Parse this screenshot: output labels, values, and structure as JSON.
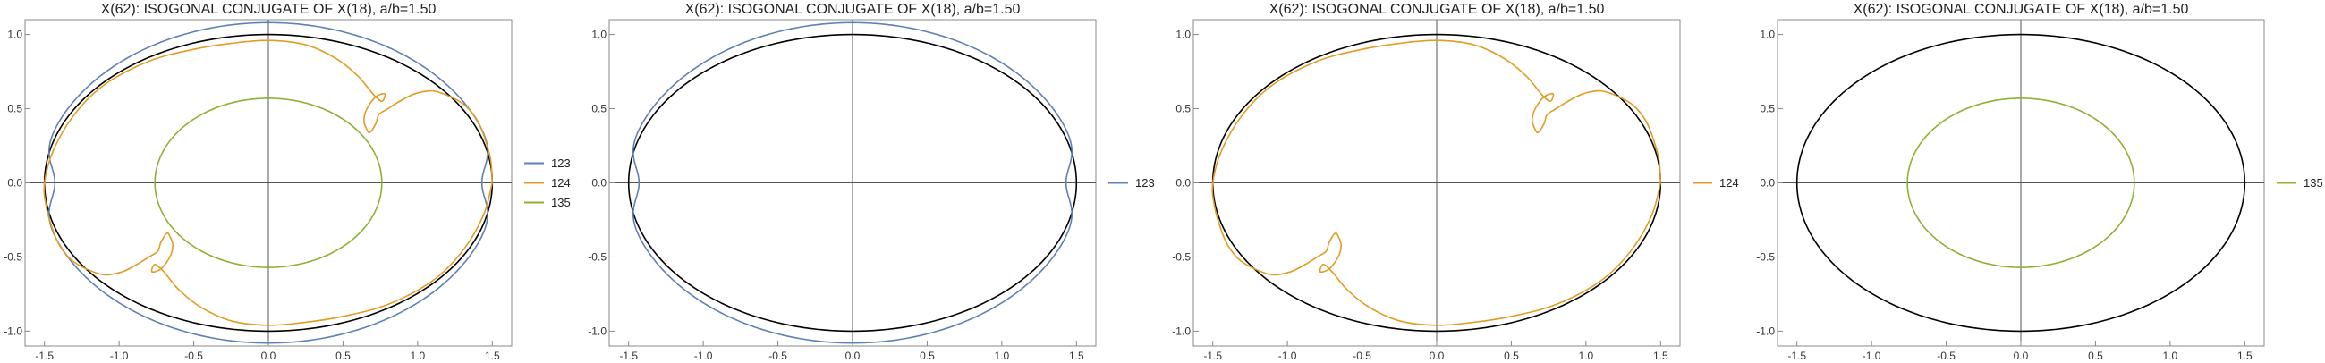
{
  "figure": {
    "colors": {
      "black": "#000000",
      "123": "#5e81b5",
      "124": "#e19c24",
      "135": "#8fb032",
      "frame": "#888888",
      "axis": "#555555"
    }
  },
  "chart_data": [
    {
      "type": "line",
      "title": "X(62): ISOGONAL CONJUGATE OF X(18), a/b=1.50",
      "xlim": [
        -1.63,
        1.63
      ],
      "ylim": [
        -1.1,
        1.1
      ],
      "xticks": [
        -1.5,
        -1.0,
        -0.5,
        0.0,
        0.5,
        1.0,
        1.5
      ],
      "xtick_labels": [
        "-1.5",
        "-1.0",
        "-0.5",
        "0.0",
        "0.5",
        "1.0",
        "1.5"
      ],
      "yticks": [
        -1.0,
        -0.5,
        0.0,
        0.5,
        1.0
      ],
      "ytick_labels": [
        "-1.0",
        "-0.5",
        "0.0",
        "0.5",
        "1.0"
      ],
      "legend": [
        "123",
        "124",
        "135"
      ],
      "legend_position": "right",
      "grid": false,
      "series": [
        {
          "key": "ellipse",
          "color": "black",
          "shape": "ellipse",
          "a": 1.5,
          "b": 1.0
        },
        {
          "key": "123",
          "name": "123",
          "color": "123",
          "shape": "outer_curve"
        },
        {
          "key": "124",
          "name": "124",
          "color": "124",
          "shape": "loop_curve",
          "points": [
            [
              1.5,
              0.0
            ],
            [
              1.49,
              0.15
            ],
            [
              1.45,
              0.3
            ],
            [
              1.4,
              0.42
            ],
            [
              1.32,
              0.52
            ],
            [
              1.22,
              0.58
            ],
            [
              1.1,
              0.62
            ],
            [
              0.98,
              0.6
            ],
            [
              0.88,
              0.55
            ],
            [
              0.8,
              0.5
            ],
            [
              0.74,
              0.46
            ],
            [
              0.72,
              0.4
            ],
            [
              0.68,
              0.34
            ],
            [
              0.66,
              0.36
            ],
            [
              0.64,
              0.42
            ],
            [
              0.66,
              0.5
            ],
            [
              0.72,
              0.58
            ],
            [
              0.78,
              0.6
            ],
            [
              0.76,
              0.55
            ],
            [
              0.7,
              0.6
            ],
            [
              0.6,
              0.72
            ],
            [
              0.45,
              0.84
            ],
            [
              0.25,
              0.93
            ],
            [
              0.0,
              0.96
            ],
            [
              -0.25,
              0.94
            ],
            [
              -0.5,
              0.9
            ],
            [
              -0.8,
              0.82
            ],
            [
              -1.1,
              0.66
            ],
            [
              -1.3,
              0.46
            ],
            [
              -1.44,
              0.22
            ],
            [
              -1.5,
              0.0
            ],
            [
              -1.49,
              -0.15
            ],
            [
              -1.45,
              -0.3
            ],
            [
              -1.4,
              -0.42
            ],
            [
              -1.32,
              -0.52
            ],
            [
              -1.22,
              -0.58
            ],
            [
              -1.1,
              -0.62
            ],
            [
              -0.98,
              -0.6
            ],
            [
              -0.88,
              -0.55
            ],
            [
              -0.8,
              -0.5
            ],
            [
              -0.74,
              -0.46
            ],
            [
              -0.72,
              -0.4
            ],
            [
              -0.68,
              -0.34
            ],
            [
              -0.66,
              -0.36
            ],
            [
              -0.64,
              -0.42
            ],
            [
              -0.66,
              -0.5
            ],
            [
              -0.72,
              -0.58
            ],
            [
              -0.78,
              -0.6
            ],
            [
              -0.76,
              -0.55
            ],
            [
              -0.7,
              -0.6
            ],
            [
              -0.6,
              -0.72
            ],
            [
              -0.45,
              -0.84
            ],
            [
              -0.25,
              -0.93
            ],
            [
              0.0,
              -0.96
            ],
            [
              0.25,
              -0.94
            ],
            [
              0.5,
              -0.9
            ],
            [
              0.8,
              -0.82
            ],
            [
              1.1,
              -0.66
            ],
            [
              1.3,
              -0.46
            ],
            [
              1.44,
              -0.22
            ],
            [
              1.5,
              0.0
            ]
          ]
        },
        {
          "key": "135",
          "name": "135",
          "color": "135",
          "shape": "ellipse",
          "a": 0.76,
          "b": 0.57
        }
      ]
    },
    {
      "type": "line",
      "title": "X(62): ISOGONAL CONJUGATE OF X(18), a/b=1.50",
      "xlim": [
        -1.63,
        1.63
      ],
      "ylim": [
        -1.1,
        1.1
      ],
      "xticks": [
        -1.5,
        -1.0,
        -0.5,
        0.0,
        0.5,
        1.0,
        1.5
      ],
      "xtick_labels": [
        "-1.5",
        "-1.0",
        "-0.5",
        "0.0",
        "0.5",
        "1.0",
        "1.5"
      ],
      "yticks": [
        -1.0,
        -0.5,
        0.0,
        0.5,
        1.0
      ],
      "ytick_labels": [
        "-1.0",
        "-0.5",
        "0.0",
        "0.5",
        "1.0"
      ],
      "legend": [
        "123"
      ],
      "legend_position": "right",
      "grid": false,
      "series": [
        {
          "key": "ellipse",
          "color": "black",
          "shape": "ellipse",
          "a": 1.5,
          "b": 1.0
        },
        {
          "key": "123",
          "name": "123",
          "color": "123",
          "shape": "outer_curve"
        }
      ]
    },
    {
      "type": "line",
      "title": "X(62): ISOGONAL CONJUGATE OF X(18), a/b=1.50",
      "xlim": [
        -1.63,
        1.63
      ],
      "ylim": [
        -1.1,
        1.1
      ],
      "xticks": [
        -1.5,
        -1.0,
        -0.5,
        0.0,
        0.5,
        1.0,
        1.5
      ],
      "xtick_labels": [
        "-1.5",
        "-1.0",
        "-0.5",
        "0.0",
        "0.5",
        "1.0",
        "1.5"
      ],
      "yticks": [
        -1.0,
        -0.5,
        0.0,
        0.5,
        1.0
      ],
      "ytick_labels": [
        "-1.0",
        "-0.5",
        "0.0",
        "0.5",
        "1.0"
      ],
      "legend": [
        "124"
      ],
      "legend_position": "right",
      "grid": false,
      "series": [
        {
          "key": "ellipse",
          "color": "black",
          "shape": "ellipse",
          "a": 1.5,
          "b": 1.0
        },
        {
          "key": "124",
          "name": "124",
          "color": "124",
          "shape": "loop_curve",
          "points": [
            [
              1.5,
              0.0
            ],
            [
              1.49,
              0.15
            ],
            [
              1.45,
              0.3
            ],
            [
              1.4,
              0.42
            ],
            [
              1.32,
              0.52
            ],
            [
              1.22,
              0.58
            ],
            [
              1.1,
              0.62
            ],
            [
              0.98,
              0.6
            ],
            [
              0.88,
              0.55
            ],
            [
              0.8,
              0.5
            ],
            [
              0.74,
              0.46
            ],
            [
              0.72,
              0.4
            ],
            [
              0.68,
              0.34
            ],
            [
              0.66,
              0.36
            ],
            [
              0.64,
              0.42
            ],
            [
              0.66,
              0.5
            ],
            [
              0.72,
              0.58
            ],
            [
              0.78,
              0.6
            ],
            [
              0.76,
              0.55
            ],
            [
              0.7,
              0.6
            ],
            [
              0.6,
              0.72
            ],
            [
              0.45,
              0.84
            ],
            [
              0.25,
              0.93
            ],
            [
              0.0,
              0.96
            ],
            [
              -0.25,
              0.94
            ],
            [
              -0.5,
              0.9
            ],
            [
              -0.8,
              0.82
            ],
            [
              -1.1,
              0.66
            ],
            [
              -1.3,
              0.46
            ],
            [
              -1.44,
              0.22
            ],
            [
              -1.5,
              0.0
            ],
            [
              -1.49,
              -0.15
            ],
            [
              -1.45,
              -0.3
            ],
            [
              -1.4,
              -0.42
            ],
            [
              -1.32,
              -0.52
            ],
            [
              -1.22,
              -0.58
            ],
            [
              -1.1,
              -0.62
            ],
            [
              -0.98,
              -0.6
            ],
            [
              -0.88,
              -0.55
            ],
            [
              -0.8,
              -0.5
            ],
            [
              -0.74,
              -0.46
            ],
            [
              -0.72,
              -0.4
            ],
            [
              -0.68,
              -0.34
            ],
            [
              -0.66,
              -0.36
            ],
            [
              -0.64,
              -0.42
            ],
            [
              -0.66,
              -0.5
            ],
            [
              -0.72,
              -0.58
            ],
            [
              -0.78,
              -0.6
            ],
            [
              -0.76,
              -0.55
            ],
            [
              -0.7,
              -0.6
            ],
            [
              -0.6,
              -0.72
            ],
            [
              -0.45,
              -0.84
            ],
            [
              -0.25,
              -0.93
            ],
            [
              0.0,
              -0.96
            ],
            [
              0.25,
              -0.94
            ],
            [
              0.5,
              -0.9
            ],
            [
              0.8,
              -0.82
            ],
            [
              1.1,
              -0.66
            ],
            [
              1.3,
              -0.46
            ],
            [
              1.44,
              -0.22
            ],
            [
              1.5,
              0.0
            ]
          ]
        }
      ]
    },
    {
      "type": "line",
      "title": "X(62): ISOGONAL CONJUGATE OF X(18), a/b=1.50",
      "xlim": [
        -1.63,
        1.63
      ],
      "ylim": [
        -1.1,
        1.1
      ],
      "xticks": [
        -1.5,
        -1.0,
        -0.5,
        0.0,
        0.5,
        1.0,
        1.5
      ],
      "xtick_labels": [
        "-1.5",
        "-1.0",
        "-0.5",
        "0.0",
        "0.5",
        "1.0",
        "1.5"
      ],
      "yticks": [
        -1.0,
        -0.5,
        0.0,
        0.5,
        1.0
      ],
      "ytick_labels": [
        "-1.0",
        "-0.5",
        "0.0",
        "0.5",
        "1.0"
      ],
      "legend": [
        "135"
      ],
      "legend_position": "right",
      "grid": false,
      "series": [
        {
          "key": "ellipse",
          "color": "black",
          "shape": "ellipse",
          "a": 1.5,
          "b": 1.0
        },
        {
          "key": "135",
          "name": "135",
          "color": "135",
          "shape": "ellipse",
          "a": 0.76,
          "b": 0.57
        }
      ]
    }
  ]
}
